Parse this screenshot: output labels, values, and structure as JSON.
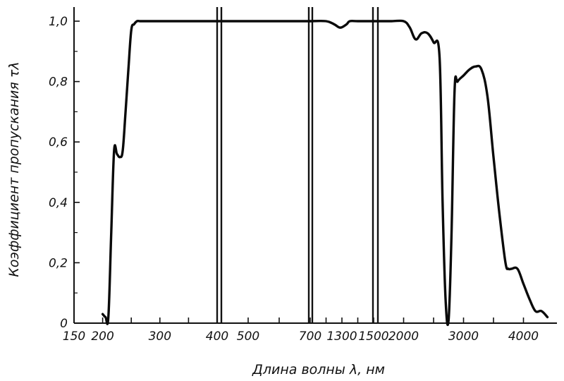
{
  "chart_data": {
    "type": "line",
    "xlabel": "Длина волны λ, нм",
    "ylabel": "Коэффициент пропускания τλ",
    "ylim": [
      0,
      1.0
    ],
    "y_ticks": [
      "0",
      "0,2",
      "0,4",
      "0,6",
      "0,8",
      "1,0"
    ],
    "x_axis_note": "broken axis with four segments of different scale",
    "segments": [
      {
        "x_range": [
          150,
          400
        ],
        "tick_labels": [
          "150",
          "200",
          "300",
          "400"
        ],
        "x": [
          200,
          205,
          210,
          215,
          220,
          225,
          230,
          235,
          240,
          245,
          250,
          255,
          260,
          265,
          270,
          280,
          300,
          350,
          400
        ],
        "y": [
          0.03,
          0.02,
          0.02,
          0.3,
          0.57,
          0.56,
          0.55,
          0.57,
          0.7,
          0.84,
          0.97,
          0.99,
          1.0,
          1.0,
          1.0,
          1.0,
          1.0,
          1.0,
          1.0
        ]
      },
      {
        "x_range": [
          400,
          700
        ],
        "tick_labels": [
          "500",
          "700"
        ],
        "x": [
          400,
          450,
          500,
          550,
          600,
          650,
          700
        ],
        "y": [
          1.0,
          1.0,
          1.0,
          1.0,
          1.0,
          1.0,
          1.0
        ]
      },
      {
        "x_range": [
          1100,
          1500
        ],
        "tick_labels": [
          "1300",
          "1500"
        ],
        "x": [
          1100,
          1200,
          1250,
          1280,
          1300,
          1330,
          1350,
          1400,
          1500
        ],
        "y": [
          1.0,
          1.0,
          0.99,
          0.98,
          0.98,
          0.99,
          1.0,
          1.0,
          1.0
        ]
      },
      {
        "x_range": [
          1500,
          4500
        ],
        "tick_labels": [
          "2000",
          "3000",
          "4000"
        ],
        "x": [
          1500,
          1800,
          2000,
          2100,
          2200,
          2300,
          2400,
          2500,
          2600,
          2650,
          2700,
          2750,
          2800,
          2850,
          2900,
          3000,
          3100,
          3200,
          3300,
          3400,
          3500,
          3600,
          3700,
          3750,
          3800,
          3900,
          4000,
          4100,
          4200,
          4300,
          4400
        ],
        "y": [
          1.0,
          1.0,
          1.0,
          0.98,
          0.94,
          0.96,
          0.96,
          0.93,
          0.88,
          0.4,
          0.08,
          0.01,
          0.3,
          0.77,
          0.8,
          0.82,
          0.84,
          0.85,
          0.84,
          0.75,
          0.55,
          0.36,
          0.2,
          0.18,
          0.18,
          0.18,
          0.13,
          0.08,
          0.04,
          0.04,
          0.02
        ]
      }
    ]
  }
}
